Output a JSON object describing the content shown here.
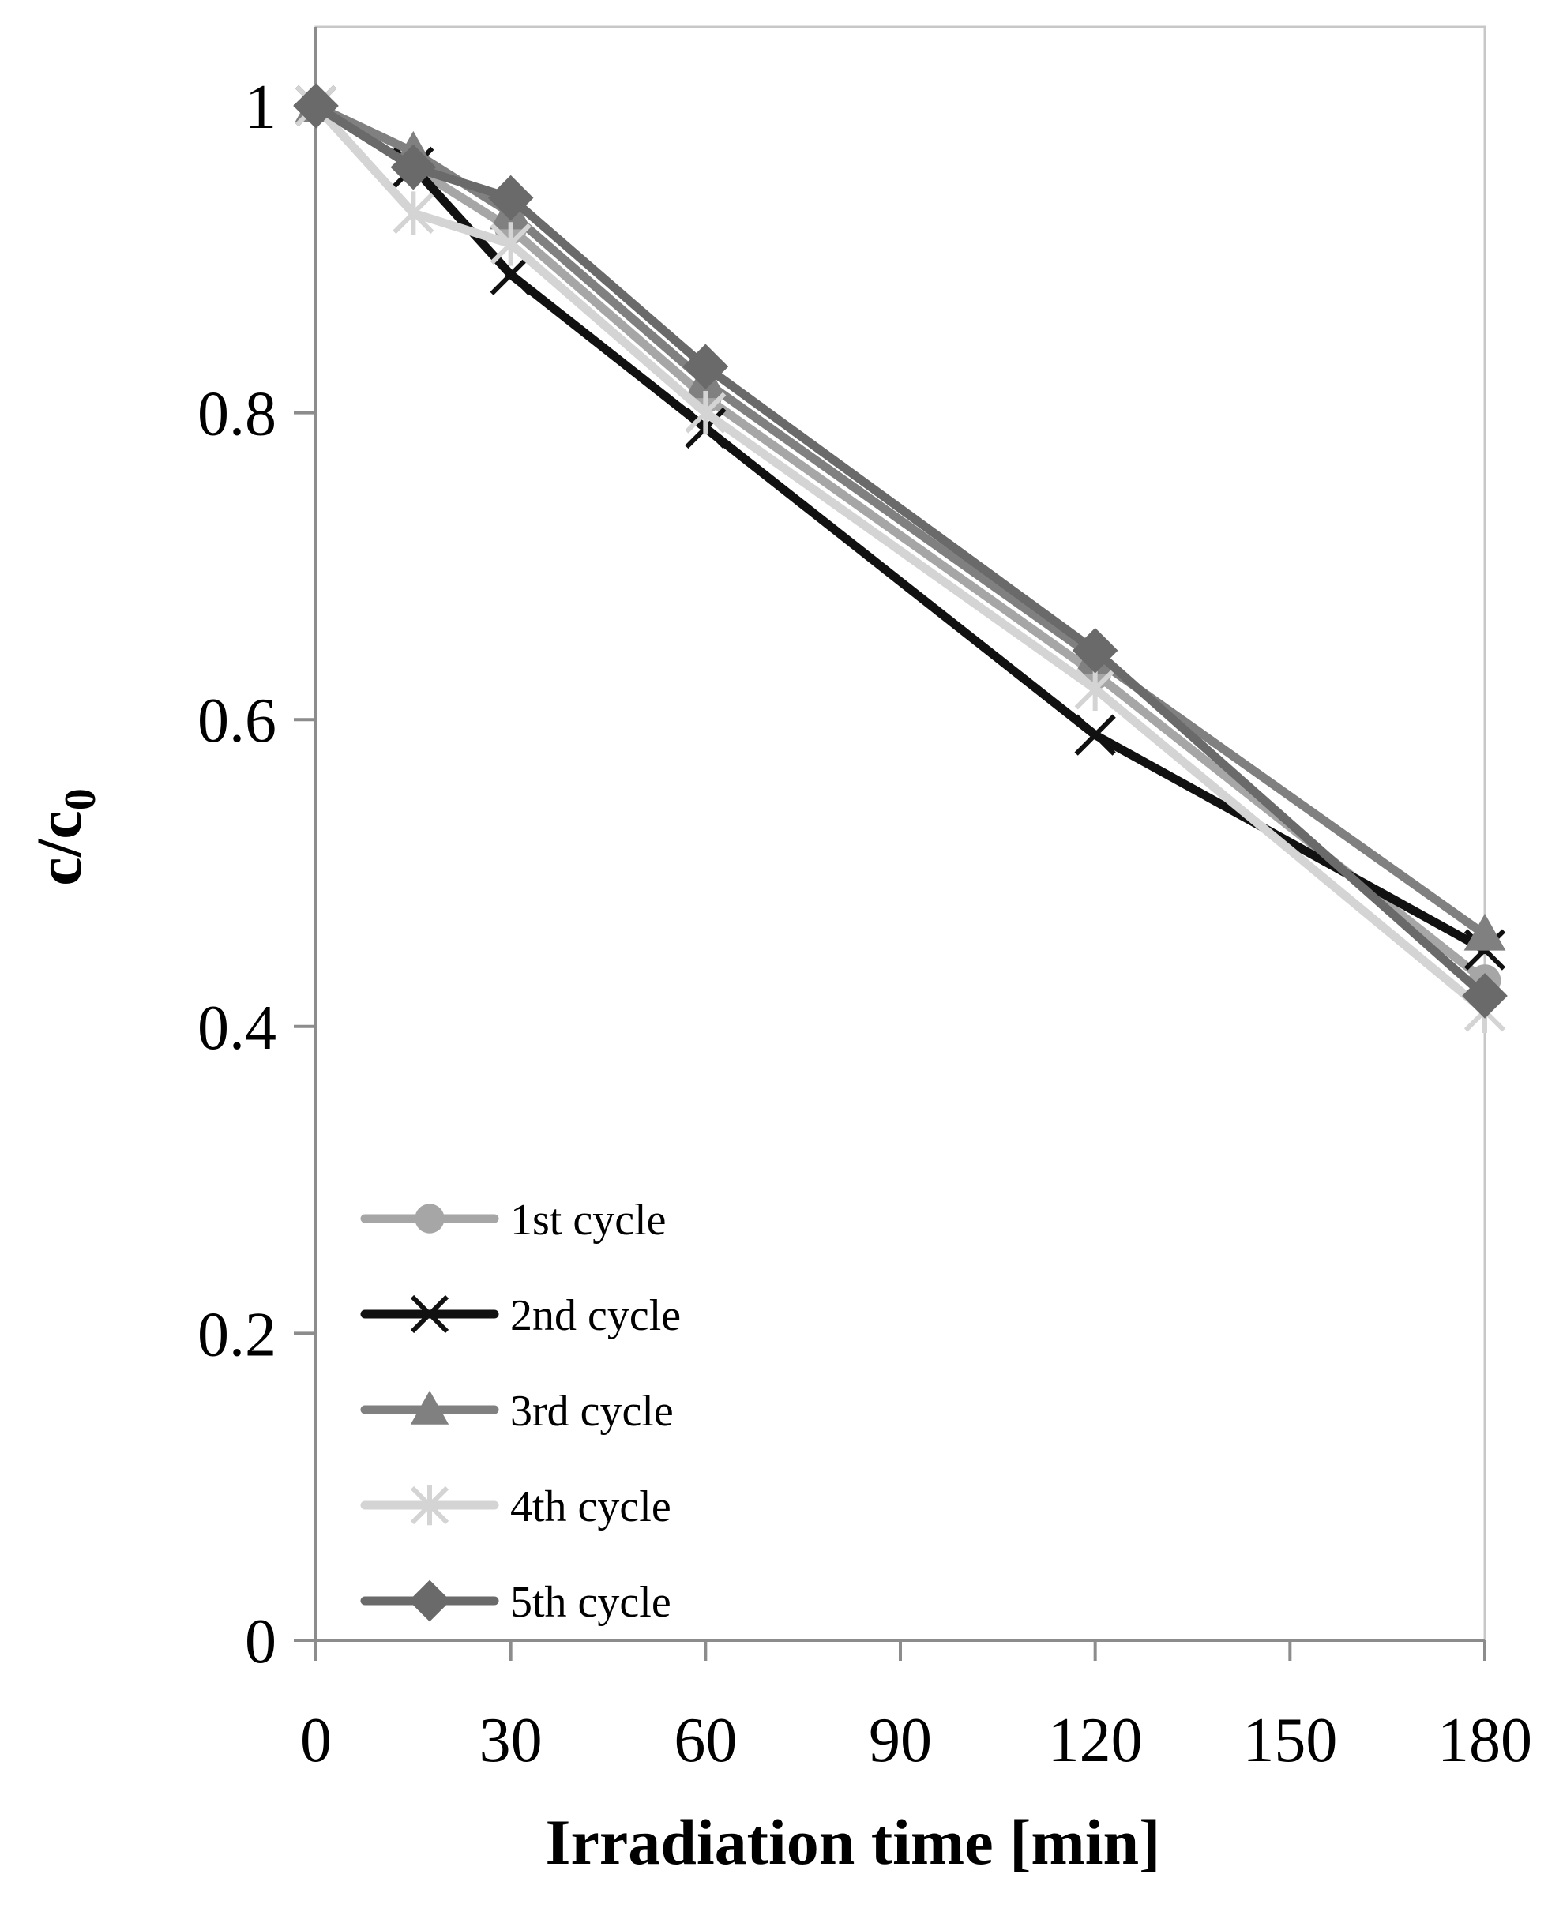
{
  "chart_data": {
    "type": "line",
    "title": "",
    "xlabel": "Irradiation time [min]",
    "ylabel_main": "c/c",
    "ylabel_sub": "0",
    "xlim": [
      0,
      180
    ],
    "ylim": [
      0,
      1
    ],
    "xticks": [
      "0",
      "30",
      "60",
      "90",
      "120",
      "150",
      "180"
    ],
    "yticks": [
      "0",
      "0.2",
      "0.4",
      "0.6",
      "0.8",
      "1"
    ],
    "grid": false,
    "legend_position": "bottom-left",
    "x": [
      0,
      15,
      30,
      60,
      120,
      180
    ],
    "series": [
      {
        "name": "1st cycle",
        "values": [
          1.0,
          0.96,
          0.92,
          0.81,
          0.63,
          0.43
        ],
        "color": "#a6a6a6",
        "marker": "circle"
      },
      {
        "name": "2nd cycle",
        "values": [
          1.0,
          0.96,
          0.89,
          0.79,
          0.59,
          0.45
        ],
        "color": "#111111",
        "marker": "x"
      },
      {
        "name": "3rd cycle",
        "values": [
          1.0,
          0.97,
          0.93,
          0.82,
          0.64,
          0.46
        ],
        "color": "#808080",
        "marker": "triangle"
      },
      {
        "name": "4th cycle",
        "values": [
          1.0,
          0.93,
          0.91,
          0.8,
          0.62,
          0.41
        ],
        "color": "#d4d4d4",
        "marker": "asterisk"
      },
      {
        "name": "5th cycle",
        "values": [
          1.0,
          0.96,
          0.94,
          0.83,
          0.645,
          0.42
        ],
        "color": "#6a6a6a",
        "marker": "diamond"
      }
    ]
  }
}
